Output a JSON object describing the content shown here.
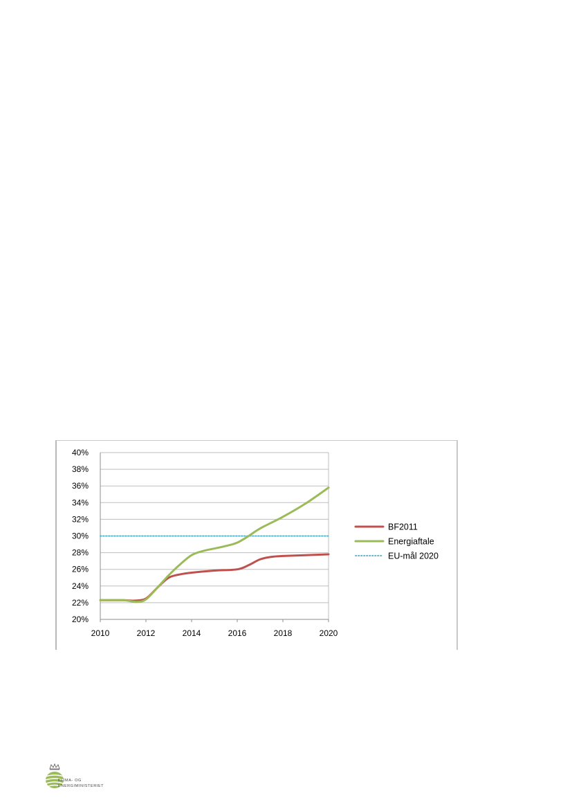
{
  "chart_data": {
    "type": "line",
    "title": "",
    "xlabel": "",
    "ylabel": "",
    "xlim": [
      2010,
      2020
    ],
    "ylim": [
      20,
      40
    ],
    "x_ticks": [
      2010,
      2012,
      2014,
      2016,
      2018,
      2020
    ],
    "x_tick_labels": [
      "2010",
      "2012",
      "2014",
      "2016",
      "2018",
      "2020"
    ],
    "y_ticks": [
      20,
      22,
      24,
      26,
      28,
      30,
      32,
      34,
      36,
      38,
      40
    ],
    "y_tick_labels": [
      "20%",
      "22%",
      "24%",
      "26%",
      "28%",
      "30%",
      "32%",
      "34%",
      "36%",
      "38%",
      "40%"
    ],
    "grid": "horizontal",
    "legend_position": "right",
    "series": [
      {
        "name": "BF2011",
        "color": "#c0504d",
        "style": "solid",
        "x": [
          2010,
          2011,
          2011.5,
          2012,
          2012.5,
          2013,
          2013.5,
          2014,
          2015,
          2016,
          2016.5,
          2017,
          2017.5,
          2018,
          2019,
          2020
        ],
        "y": [
          22.3,
          22.3,
          22.25,
          22.5,
          23.8,
          25.0,
          25.4,
          25.6,
          25.85,
          26.0,
          26.5,
          27.2,
          27.5,
          27.6,
          27.7,
          27.8
        ]
      },
      {
        "name": "Energiaftale",
        "color": "#9bbb59",
        "style": "solid",
        "x": [
          2010,
          2011,
          2011.6,
          2012,
          2012.5,
          2013,
          2013.5,
          2014,
          2014.5,
          2015,
          2015.5,
          2016,
          2016.5,
          2017,
          2018,
          2019,
          2020
        ],
        "y": [
          22.3,
          22.3,
          22.1,
          22.4,
          23.8,
          25.3,
          26.6,
          27.7,
          28.2,
          28.5,
          28.8,
          29.2,
          30.0,
          30.9,
          32.3,
          33.9,
          35.8
        ]
      },
      {
        "name": "EU-mål 2020",
        "color": "#4bacc6",
        "style": "dotted",
        "x": [
          2010,
          2020
        ],
        "y": [
          30,
          30
        ]
      }
    ]
  },
  "logo": {
    "line1": "KLIMA- OG",
    "line2": "ENERGIMINISTERIET"
  }
}
